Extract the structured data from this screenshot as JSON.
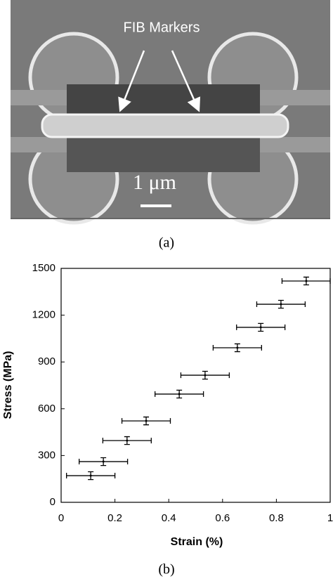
{
  "figure_a": {
    "annotation": "FIB Markers",
    "scale_label": "1 μm",
    "caption": "(a)"
  },
  "chart_data": {
    "type": "errorbar",
    "caption": "(b)",
    "xlabel": "Strain (%)",
    "ylabel": "Stress (MPa)",
    "x": [
      0.11,
      0.157,
      0.245,
      0.316,
      0.439,
      0.535,
      0.655,
      0.742,
      0.817,
      0.911
    ],
    "values": [
      171,
      261,
      396,
      522,
      694,
      815,
      991,
      1122,
      1270,
      1419
    ],
    "xerr": [
      0.09,
      0.09,
      0.09,
      0.09,
      0.09,
      0.09,
      0.09,
      0.09,
      0.09,
      0.09
    ],
    "yerr": [
      25,
      25,
      25,
      25,
      25,
      25,
      25,
      25,
      25,
      25
    ],
    "color": "#000000",
    "xlim": [
      0,
      1
    ],
    "ylim": [
      0,
      1500
    ],
    "xticks": [
      0,
      0.2,
      0.4,
      0.6,
      0.8,
      1
    ],
    "yticks": [
      0,
      300,
      600,
      900,
      1200,
      1500
    ]
  }
}
